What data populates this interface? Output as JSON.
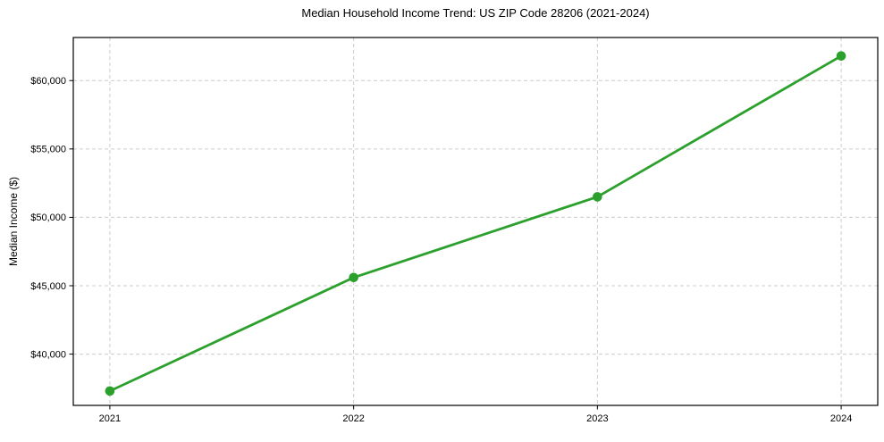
{
  "figure": {
    "background": "#ffffff"
  },
  "chart_data": {
    "type": "line",
    "title": "Median Household Income Trend: US ZIP Code 28206 (2021-2024)",
    "xlabel": "",
    "ylabel": "Median Income ($)",
    "x": [
      2021,
      2022,
      2023,
      2024
    ],
    "x_tick_labels": [
      "2021",
      "2022",
      "2023",
      "2024"
    ],
    "values": [
      37300,
      45600,
      51500,
      61800
    ],
    "y_ticks": [
      40000,
      45000,
      50000,
      55000,
      60000
    ],
    "y_tick_labels": [
      "$40,000",
      "$45,000",
      "$50,000",
      "$55,000",
      "$60,000"
    ],
    "ylim": [
      36250,
      63150
    ],
    "xlim": [
      2020.85,
      2024.15
    ],
    "grid": true,
    "grid_style": "dashed",
    "grid_color": "#cccccc",
    "legend": "none",
    "line_color": "#2ca02c",
    "marker": "circle",
    "axis_color": "#000000",
    "text_color": "#000000"
  }
}
